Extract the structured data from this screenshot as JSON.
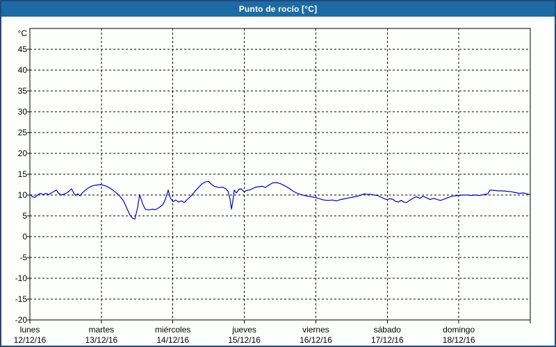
{
  "window": {
    "title": "Punto de rocío [°C]",
    "title_bar_color": "#1d6ba3",
    "border_color": "#24477e",
    "background_color": "#fdfffc"
  },
  "chart_data": {
    "type": "line",
    "title": "Punto de rocío [°C]",
    "y_unit_label": "°C",
    "ylim": [
      -20,
      50
    ],
    "yticks": [
      45,
      40,
      35,
      30,
      25,
      20,
      15,
      10,
      5,
      0,
      -5,
      -10,
      -15,
      -20
    ],
    "grid": "dashed",
    "legend": "none",
    "x_days": [
      {
        "name": "lunes",
        "date": "12/12/16"
      },
      {
        "name": "martes",
        "date": "13/12/16"
      },
      {
        "name": "miércoles",
        "date": "14/12/16"
      },
      {
        "name": "jueves",
        "date": "15/12/16"
      },
      {
        "name": "viernes",
        "date": "16/12/16"
      },
      {
        "name": "sábado",
        "date": "17/12/16"
      },
      {
        "name": "domingo",
        "date": "18/12/16"
      }
    ],
    "x_range_days": [
      0,
      7
    ],
    "series": [
      {
        "name": "Punto de rocío",
        "color": "#0000c0",
        "points": [
          [
            0.0,
            10.1
          ],
          [
            0.039,
            9.6
          ],
          [
            0.068,
            9.4
          ],
          [
            0.107,
            10.0
          ],
          [
            0.146,
            10.4
          ],
          [
            0.185,
            10.1
          ],
          [
            0.224,
            10.4
          ],
          [
            0.262,
            10.1
          ],
          [
            0.301,
            10.5
          ],
          [
            0.34,
            10.9
          ],
          [
            0.369,
            11.2
          ],
          [
            0.399,
            10.5
          ],
          [
            0.437,
            10.0
          ],
          [
            0.476,
            10.2
          ],
          [
            0.515,
            10.5
          ],
          [
            0.554,
            11.0
          ],
          [
            0.583,
            11.5
          ],
          [
            0.612,
            10.5
          ],
          [
            0.642,
            9.9
          ],
          [
            0.671,
            10.3
          ],
          [
            0.7,
            9.8
          ],
          [
            0.739,
            10.6
          ],
          [
            0.778,
            11.2
          ],
          [
            0.826,
            11.8
          ],
          [
            0.875,
            12.2
          ],
          [
            0.933,
            12.4
          ],
          [
            0.992,
            12.5
          ],
          [
            1.06,
            12.2
          ],
          [
            1.128,
            11.6
          ],
          [
            1.196,
            10.7
          ],
          [
            1.254,
            9.8
          ],
          [
            1.313,
            8.5
          ],
          [
            1.361,
            6.6
          ],
          [
            1.4,
            5.2
          ],
          [
            1.439,
            4.4
          ],
          [
            1.468,
            4.2
          ],
          [
            1.507,
            7.0
          ],
          [
            1.536,
            10.1
          ],
          [
            1.575,
            8.0
          ],
          [
            1.614,
            6.6
          ],
          [
            1.662,
            6.4
          ],
          [
            1.711,
            6.6
          ],
          [
            1.76,
            6.5
          ],
          [
            1.808,
            7.0
          ],
          [
            1.857,
            7.6
          ],
          [
            1.896,
            9.0
          ],
          [
            1.935,
            11.2
          ],
          [
            1.964,
            9.3
          ],
          [
            2.003,
            8.4
          ],
          [
            2.042,
            8.8
          ],
          [
            2.081,
            8.3
          ],
          [
            2.119,
            8.6
          ],
          [
            2.158,
            8.2
          ],
          [
            2.207,
            9.0
          ],
          [
            2.256,
            9.8
          ],
          [
            2.304,
            10.8
          ],
          [
            2.353,
            11.7
          ],
          [
            2.402,
            12.6
          ],
          [
            2.45,
            13.1
          ],
          [
            2.499,
            13.3
          ],
          [
            2.538,
            12.6
          ],
          [
            2.577,
            12.1
          ],
          [
            2.615,
            11.9
          ],
          [
            2.654,
            11.8
          ],
          [
            2.693,
            11.9
          ],
          [
            2.732,
            11.6
          ],
          [
            2.771,
            11.0
          ],
          [
            2.8,
            9.0
          ],
          [
            2.82,
            6.6
          ],
          [
            2.839,
            8.5
          ],
          [
            2.858,
            11.2
          ],
          [
            2.888,
            10.5
          ],
          [
            2.926,
            11.4
          ],
          [
            2.956,
            11.5
          ],
          [
            2.995,
            10.8
          ],
          [
            3.033,
            11.1
          ],
          [
            3.072,
            11.2
          ],
          [
            3.111,
            11.5
          ],
          [
            3.16,
            11.9
          ],
          [
            3.208,
            12.0
          ],
          [
            3.257,
            12.1
          ],
          [
            3.296,
            11.8
          ],
          [
            3.335,
            12.3
          ],
          [
            3.393,
            12.9
          ],
          [
            3.451,
            13.0
          ],
          [
            3.51,
            12.7
          ],
          [
            3.568,
            12.2
          ],
          [
            3.626,
            11.6
          ],
          [
            3.685,
            10.9
          ],
          [
            3.743,
            10.4
          ],
          [
            3.801,
            10.1
          ],
          [
            3.86,
            9.8
          ],
          [
            3.928,
            9.6
          ],
          [
            3.996,
            9.4
          ],
          [
            4.054,
            9.1
          ],
          [
            4.112,
            8.8
          ],
          [
            4.171,
            8.7
          ],
          [
            4.229,
            8.8
          ],
          [
            4.287,
            8.6
          ],
          [
            4.346,
            8.9
          ],
          [
            4.404,
            9.1
          ],
          [
            4.462,
            9.3
          ],
          [
            4.52,
            9.5
          ],
          [
            4.579,
            9.7
          ],
          [
            4.637,
            10.0
          ],
          [
            4.686,
            10.3
          ],
          [
            4.725,
            10.1
          ],
          [
            4.764,
            10.2
          ],
          [
            4.812,
            10.0
          ],
          [
            4.861,
            9.9
          ],
          [
            4.909,
            9.5
          ],
          [
            4.958,
            9.1
          ],
          [
            4.997,
            8.9
          ],
          [
            5.036,
            9.1
          ],
          [
            5.075,
            9.0
          ],
          [
            5.114,
            8.5
          ],
          [
            5.153,
            8.3
          ],
          [
            5.192,
            8.7
          ],
          [
            5.231,
            8.3
          ],
          [
            5.27,
            8.2
          ],
          [
            5.318,
            8.8
          ],
          [
            5.357,
            9.2
          ],
          [
            5.406,
            9.6
          ],
          [
            5.455,
            9.2
          ],
          [
            5.503,
            9.7
          ],
          [
            5.552,
            9.3
          ],
          [
            5.6,
            8.9
          ],
          [
            5.649,
            9.2
          ],
          [
            5.698,
            8.9
          ],
          [
            5.746,
            8.7
          ],
          [
            5.805,
            9.1
          ],
          [
            5.853,
            9.4
          ],
          [
            5.902,
            9.7
          ],
          [
            5.95,
            9.8
          ],
          [
            5.999,
            9.9
          ],
          [
            6.057,
            10.0
          ],
          [
            6.116,
            10.0
          ],
          [
            6.174,
            9.9
          ],
          [
            6.232,
            10.0
          ],
          [
            6.29,
            9.9
          ],
          [
            6.349,
            10.1
          ],
          [
            6.407,
            10.3
          ],
          [
            6.436,
            11.2
          ],
          [
            6.494,
            11.1
          ],
          [
            6.553,
            11.0
          ],
          [
            6.611,
            11.0
          ],
          [
            6.669,
            10.9
          ],
          [
            6.728,
            10.8
          ],
          [
            6.786,
            10.6
          ],
          [
            6.844,
            10.4
          ],
          [
            6.903,
            10.5
          ],
          [
            6.951,
            10.3
          ],
          [
            6.99,
            10.1
          ]
        ]
      }
    ]
  }
}
